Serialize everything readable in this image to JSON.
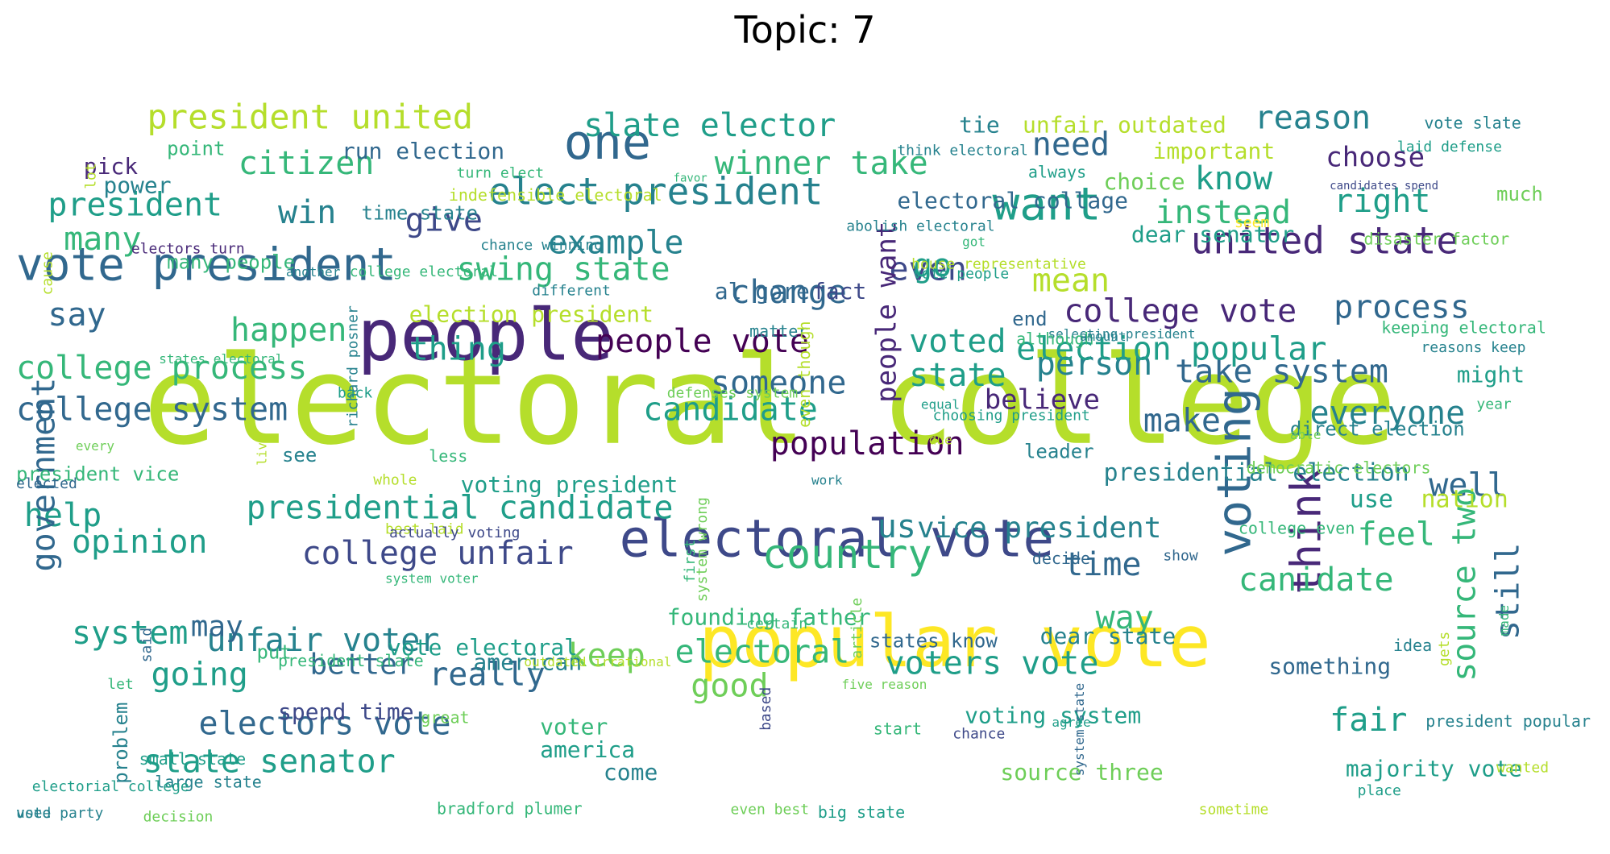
{
  "title": "Topic: 7",
  "palette": [
    "#440154",
    "#482878",
    "#3e4989",
    "#31688e",
    "#26828e",
    "#1f9e89",
    "#35b779",
    "#6ece58",
    "#b5de2b",
    "#fde725"
  ],
  "words": [
    {
      "text": "electoral college",
      "c": 8
    },
    {
      "text": "people",
      "c": 1
    },
    {
      "text": "popular vote",
      "c": 9
    },
    {
      "text": "electoral vote",
      "c": 2
    },
    {
      "text": "vote president",
      "c": 3
    },
    {
      "text": "one",
      "c": 3
    },
    {
      "text": "want",
      "c": 5
    },
    {
      "text": "united state",
      "c": 1
    },
    {
      "text": "voting",
      "c": 3
    },
    {
      "text": "think",
      "c": 1
    },
    {
      "text": "elect president",
      "c": 4
    },
    {
      "text": "president united",
      "c": 8
    },
    {
      "text": "slate elector",
      "c": 5
    },
    {
      "text": "citizen",
      "c": 6
    },
    {
      "text": "winner take",
      "c": 6
    },
    {
      "text": "president",
      "c": 5
    },
    {
      "text": "win",
      "c": 4
    },
    {
      "text": "give",
      "c": 2
    },
    {
      "text": "many",
      "c": 6
    },
    {
      "text": "example",
      "c": 4
    },
    {
      "text": "swing state",
      "c": 6
    },
    {
      "text": "say",
      "c": 3
    },
    {
      "text": "happen",
      "c": 6
    },
    {
      "text": "thing",
      "c": 5
    },
    {
      "text": "people vote",
      "c": 0
    },
    {
      "text": "change",
      "c": 3
    },
    {
      "text": "even",
      "c": 2
    },
    {
      "text": "college process",
      "c": 6
    },
    {
      "text": "state",
      "c": 5
    },
    {
      "text": "person",
      "c": 4
    },
    {
      "text": "take system",
      "c": 3
    },
    {
      "text": "college system",
      "c": 3
    },
    {
      "text": "candidate",
      "c": 5
    },
    {
      "text": "someone",
      "c": 3
    },
    {
      "text": "make",
      "c": 3
    },
    {
      "text": "believe",
      "c": 1
    },
    {
      "text": "everyone",
      "c": 4
    },
    {
      "text": "population",
      "c": 0
    },
    {
      "text": "presidential candidate",
      "c": 5
    },
    {
      "text": "help",
      "c": 5
    },
    {
      "text": "country",
      "c": 6
    },
    {
      "text": "college unfair",
      "c": 2
    },
    {
      "text": "us",
      "c": 4
    },
    {
      "text": "vice president",
      "c": 4
    },
    {
      "text": "well",
      "c": 3
    },
    {
      "text": "opinion",
      "c": 5
    },
    {
      "text": "government",
      "c": 3
    },
    {
      "text": "feel",
      "c": 6
    },
    {
      "text": "time",
      "c": 3
    },
    {
      "text": "canidate",
      "c": 6
    },
    {
      "text": "source two",
      "c": 6
    },
    {
      "text": "still",
      "c": 3
    },
    {
      "text": "system",
      "c": 5
    },
    {
      "text": "unfair voter",
      "c": 4
    },
    {
      "text": "way",
      "c": 6
    },
    {
      "text": "really",
      "c": 3
    },
    {
      "text": "going",
      "c": 5
    },
    {
      "text": "keep",
      "c": 7
    },
    {
      "text": "electoral",
      "c": 6
    },
    {
      "text": "voters vote",
      "c": 5
    },
    {
      "text": "good",
      "c": 7
    },
    {
      "text": "fair",
      "c": 5
    },
    {
      "text": "electors vote",
      "c": 3
    },
    {
      "text": "state senator",
      "c": 5
    },
    {
      "text": "need",
      "c": 3
    },
    {
      "text": "reason",
      "c": 4
    },
    {
      "text": "choose",
      "c": 1
    },
    {
      "text": "know",
      "c": 5
    },
    {
      "text": "right",
      "c": 5
    },
    {
      "text": "instead",
      "c": 6
    },
    {
      "text": "go",
      "c": 5
    },
    {
      "text": "mean",
      "c": 8
    },
    {
      "text": "process",
      "c": 3
    },
    {
      "text": "college vote",
      "c": 1
    },
    {
      "text": "election popular",
      "c": 5
    },
    {
      "text": "voted",
      "c": 5
    },
    {
      "text": "people want",
      "c": 1
    },
    {
      "text": "presidential election",
      "c": 4
    },
    {
      "text": "nation",
      "c": 8
    },
    {
      "text": "use",
      "c": 5
    },
    {
      "text": "may",
      "c": 3
    },
    {
      "text": "better",
      "c": 3
    },
    {
      "text": "founding father",
      "c": 6
    },
    {
      "text": "vote electoral",
      "c": 5
    },
    {
      "text": "american",
      "c": 4
    },
    {
      "text": "dear state",
      "c": 4
    },
    {
      "text": "something",
      "c": 3
    },
    {
      "text": "spend time",
      "c": 2
    },
    {
      "text": "voting system",
      "c": 5
    },
    {
      "text": "majority vote",
      "c": 5
    },
    {
      "text": "source three",
      "c": 7
    },
    {
      "text": "america",
      "c": 5
    },
    {
      "text": "voter",
      "c": 6
    },
    {
      "text": "come",
      "c": 4
    },
    {
      "text": "run election",
      "c": 3
    },
    {
      "text": "tie",
      "c": 4
    },
    {
      "text": "unfair outdated",
      "c": 8
    },
    {
      "text": "important",
      "c": 8
    },
    {
      "text": "choice",
      "c": 7
    },
    {
      "text": "dear senator",
      "c": 5
    },
    {
      "text": "electoral collage",
      "c": 3
    },
    {
      "text": "al gore",
      "c": 3
    },
    {
      "text": "fact",
      "c": 2
    },
    {
      "text": "end",
      "c": 3
    },
    {
      "text": "leader",
      "c": 4
    },
    {
      "text": "might",
      "c": 5
    },
    {
      "text": "election president",
      "c": 8
    },
    {
      "text": "voting president",
      "c": 5
    },
    {
      "text": "pick",
      "c": 1
    },
    {
      "text": "power",
      "c": 4
    },
    {
      "text": "point",
      "c": 6
    },
    {
      "text": "many people",
      "c": 6
    },
    {
      "text": "see",
      "c": 4
    },
    {
      "text": "put",
      "c": 6
    },
    {
      "text": "problem",
      "c": 4
    },
    {
      "text": "time state",
      "c": 4
    },
    {
      "text": "matter",
      "c": 4
    },
    {
      "text": "direct election",
      "c": 4
    },
    {
      "text": "states know",
      "c": 3
    },
    {
      "text": "president vice",
      "c": 6
    },
    {
      "text": "vote slate",
      "c": 4
    },
    {
      "text": "laid defense",
      "c": 5
    },
    {
      "text": "much",
      "c": 7
    },
    {
      "text": "disaster factor",
      "c": 7
    },
    {
      "text": "keeping electoral",
      "c": 6
    },
    {
      "text": "reasons keep",
      "c": 4
    },
    {
      "text": "think electoral",
      "c": 4
    },
    {
      "text": "turn elect",
      "c": 6
    },
    {
      "text": "indefensible electoral",
      "c": 8
    },
    {
      "text": "always",
      "c": 5
    },
    {
      "text": "favor",
      "c": 6
    },
    {
      "text": "candidates spend",
      "c": 2
    },
    {
      "text": "seem",
      "c": 9
    },
    {
      "text": "got",
      "c": 6
    },
    {
      "text": "abolish electoral",
      "c": 4
    },
    {
      "text": "chance winning",
      "c": 4
    },
    {
      "text": "vote people",
      "c": 5
    },
    {
      "text": "house representative",
      "c": 8
    },
    {
      "text": "electors turn",
      "c": 1
    },
    {
      "text": "college electoral",
      "c": 6
    },
    {
      "text": "different",
      "c": 4
    },
    {
      "text": "another",
      "c": 4
    },
    {
      "text": "selecting president",
      "c": 4
    },
    {
      "text": "states electoral",
      "c": 6
    },
    {
      "text": "although",
      "c": 6
    },
    {
      "text": "back",
      "c": 5
    },
    {
      "text": "defenses system",
      "c": 7
    },
    {
      "text": "choosing president",
      "c": 5
    },
    {
      "text": "equal",
      "c": 5
    },
    {
      "text": "year",
      "c": 6
    },
    {
      "text": "due",
      "c": 8
    },
    {
      "text": "even though",
      "c": 8
    },
    {
      "text": "every",
      "c": 7
    },
    {
      "text": "less",
      "c": 6
    },
    {
      "text": "richard posner",
      "c": 4
    },
    {
      "text": "whole",
      "c": 8
    },
    {
      "text": "work",
      "c": 4
    },
    {
      "text": "live",
      "c": 8
    },
    {
      "text": "elected",
      "c": 3
    },
    {
      "text": "best laid",
      "c": 8
    },
    {
      "text": "first",
      "c": 6
    },
    {
      "text": "decide",
      "c": 3
    },
    {
      "text": "college even",
      "c": 6
    },
    {
      "text": "actually voting",
      "c": 2
    },
    {
      "text": "system voter",
      "c": 6
    },
    {
      "text": "system wrong",
      "c": 7
    },
    {
      "text": "let",
      "c": 6
    },
    {
      "text": "democratic electors",
      "c": 7
    },
    {
      "text": "place",
      "c": 5
    },
    {
      "text": "show",
      "c": 3
    },
    {
      "text": "certain",
      "c": 6
    },
    {
      "text": "article",
      "c": 7
    },
    {
      "text": "said",
      "c": 3
    },
    {
      "text": "president slate",
      "c": 6
    },
    {
      "text": "made",
      "c": 6
    },
    {
      "text": "idea",
      "c": 4
    },
    {
      "text": "outdated irrational",
      "c": 8
    },
    {
      "text": "five reason",
      "c": 7
    },
    {
      "text": "agree",
      "c": 5
    },
    {
      "text": "able",
      "c": 7
    },
    {
      "text": "vote party",
      "c": 4
    },
    {
      "text": "great",
      "c": 7
    },
    {
      "text": "start",
      "c": 6
    },
    {
      "text": "based",
      "c": 2
    },
    {
      "text": "wanted",
      "c": 8
    },
    {
      "text": "gets",
      "c": 8
    },
    {
      "text": "chance",
      "c": 2
    },
    {
      "text": "small state",
      "c": 5
    },
    {
      "text": "used",
      "c": 4
    },
    {
      "text": "system state",
      "c": 3
    },
    {
      "text": "amount",
      "c": 4
    },
    {
      "text": "president popular",
      "c": 4
    },
    {
      "text": "large state",
      "c": 4
    },
    {
      "text": "electorial college",
      "c": 5
    },
    {
      "text": "decision",
      "c": 7
    },
    {
      "text": "bradford plumer",
      "c": 6
    },
    {
      "text": "even best",
      "c": 7
    },
    {
      "text": "big state",
      "c": 5
    },
    {
      "text": "sometime",
      "c": 8
    },
    {
      "text": "cause",
      "c": 8
    },
    {
      "text": "lot",
      "c": 8
    }
  ]
}
